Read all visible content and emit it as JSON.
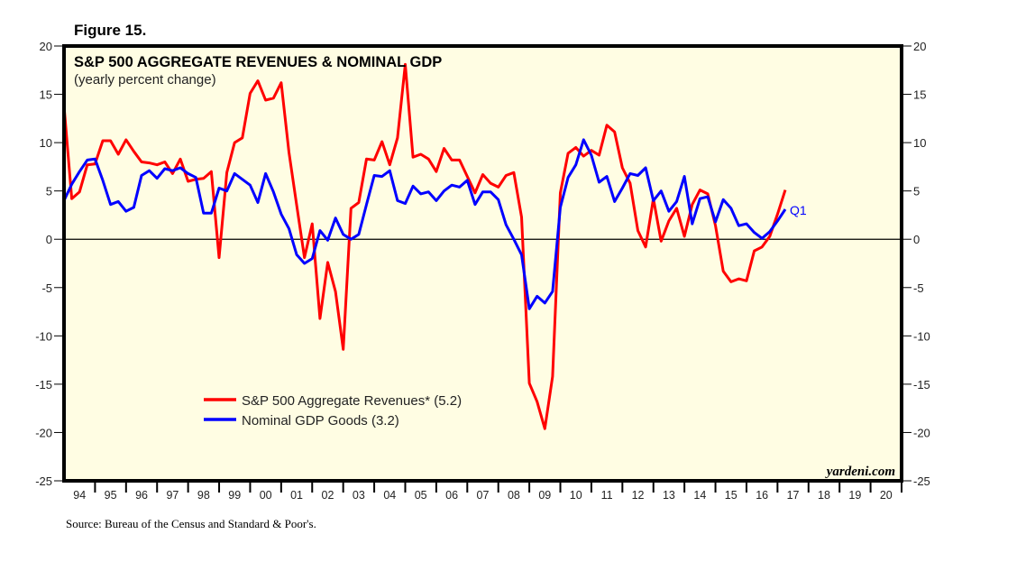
{
  "figure_label": "Figure 15.",
  "source": "Source: Bureau of the Census and Standard & Poor's.",
  "watermark": "yardeni.com",
  "chart_data": {
    "type": "line",
    "title": "S&P 500 AGGREGATE REVENUES & NOMINAL GDP",
    "subtitle": "(yearly percent change)",
    "xlabel": "",
    "ylabel": "",
    "ylim": [
      -25,
      20
    ],
    "yticks": [
      20,
      15,
      10,
      5,
      0,
      -5,
      -10,
      -15,
      -20,
      -25
    ],
    "xlim": [
      1994,
      2021
    ],
    "xtick_labels": [
      "94",
      "95",
      "96",
      "97",
      "98",
      "99",
      "00",
      "01",
      "02",
      "03",
      "04",
      "05",
      "06",
      "07",
      "08",
      "09",
      "10",
      "11",
      "12",
      "13",
      "14",
      "15",
      "16",
      "17",
      "18",
      "19",
      "20"
    ],
    "x_start": 1994,
    "x_step": 0.25,
    "legend_position": "lower-left",
    "end_annotation": "Q1",
    "series": [
      {
        "name": "S&P 500 Aggregate Revenues* (5.2)",
        "color": "#ff0000",
        "values": [
          13.8,
          4.2,
          4.9,
          7.7,
          7.8,
          10.2,
          10.2,
          8.8,
          10.3,
          9.1,
          8.0,
          7.9,
          7.7,
          8.0,
          6.8,
          8.3,
          6.0,
          6.2,
          6.3,
          7.0,
          -1.9,
          6.9,
          10.0,
          10.5,
          15.1,
          16.4,
          14.4,
          14.6,
          16.2,
          9.0,
          3.5,
          -1.9,
          1.6,
          -8.2,
          -2.4,
          -5.4,
          -11.4,
          3.2,
          3.8,
          8.3,
          8.2,
          10.1,
          7.7,
          10.5,
          18.1,
          8.5,
          8.8,
          8.3,
          7.0,
          9.4,
          8.2,
          8.2,
          6.5,
          4.8,
          6.7,
          5.8,
          5.4,
          6.6,
          6.9,
          2.3,
          -14.9,
          -16.8,
          -19.6,
          -14.2,
          4.8,
          8.9,
          9.5,
          8.6,
          9.2,
          8.7,
          11.8,
          11.1,
          7.4,
          5.8,
          0.9,
          -0.8,
          4.2,
          -0.2,
          1.9,
          3.2,
          0.3,
          3.6,
          5.1,
          4.7,
          1.4,
          -3.3,
          -4.4,
          -4.1,
          -4.3,
          -1.2,
          -0.8,
          0.3,
          2.6,
          5.1
        ]
      },
      {
        "name": "Nominal GDP Goods (3.2)",
        "color": "#0000ff",
        "values": [
          4.0,
          5.7,
          7.0,
          8.2,
          8.3,
          6.1,
          3.6,
          3.9,
          2.9,
          3.3,
          6.6,
          7.1,
          6.3,
          7.3,
          7.1,
          7.4,
          6.8,
          6.4,
          2.7,
          2.7,
          5.3,
          5.0,
          6.8,
          6.2,
          5.6,
          3.8,
          6.8,
          4.9,
          2.6,
          1.1,
          -1.6,
          -2.5,
          -2.0,
          0.9,
          -0.1,
          2.2,
          0.5,
          0.0,
          0.5,
          3.6,
          6.6,
          6.5,
          7.1,
          4.0,
          3.7,
          5.5,
          4.7,
          4.9,
          4.0,
          5.0,
          5.6,
          5.4,
          6.1,
          3.6,
          4.9,
          4.9,
          4.1,
          1.5,
          0.0,
          -1.6,
          -7.2,
          -5.9,
          -6.6,
          -5.4,
          3.3,
          6.4,
          7.7,
          10.3,
          8.7,
          5.9,
          6.5,
          3.9,
          5.3,
          6.8,
          6.6,
          7.4,
          4.0,
          5.0,
          2.9,
          3.9,
          6.5,
          1.6,
          4.2,
          4.4,
          1.8,
          4.1,
          3.2,
          1.4,
          1.6,
          0.7,
          0.1,
          0.8,
          1.9,
          3.1
        ]
      }
    ]
  }
}
